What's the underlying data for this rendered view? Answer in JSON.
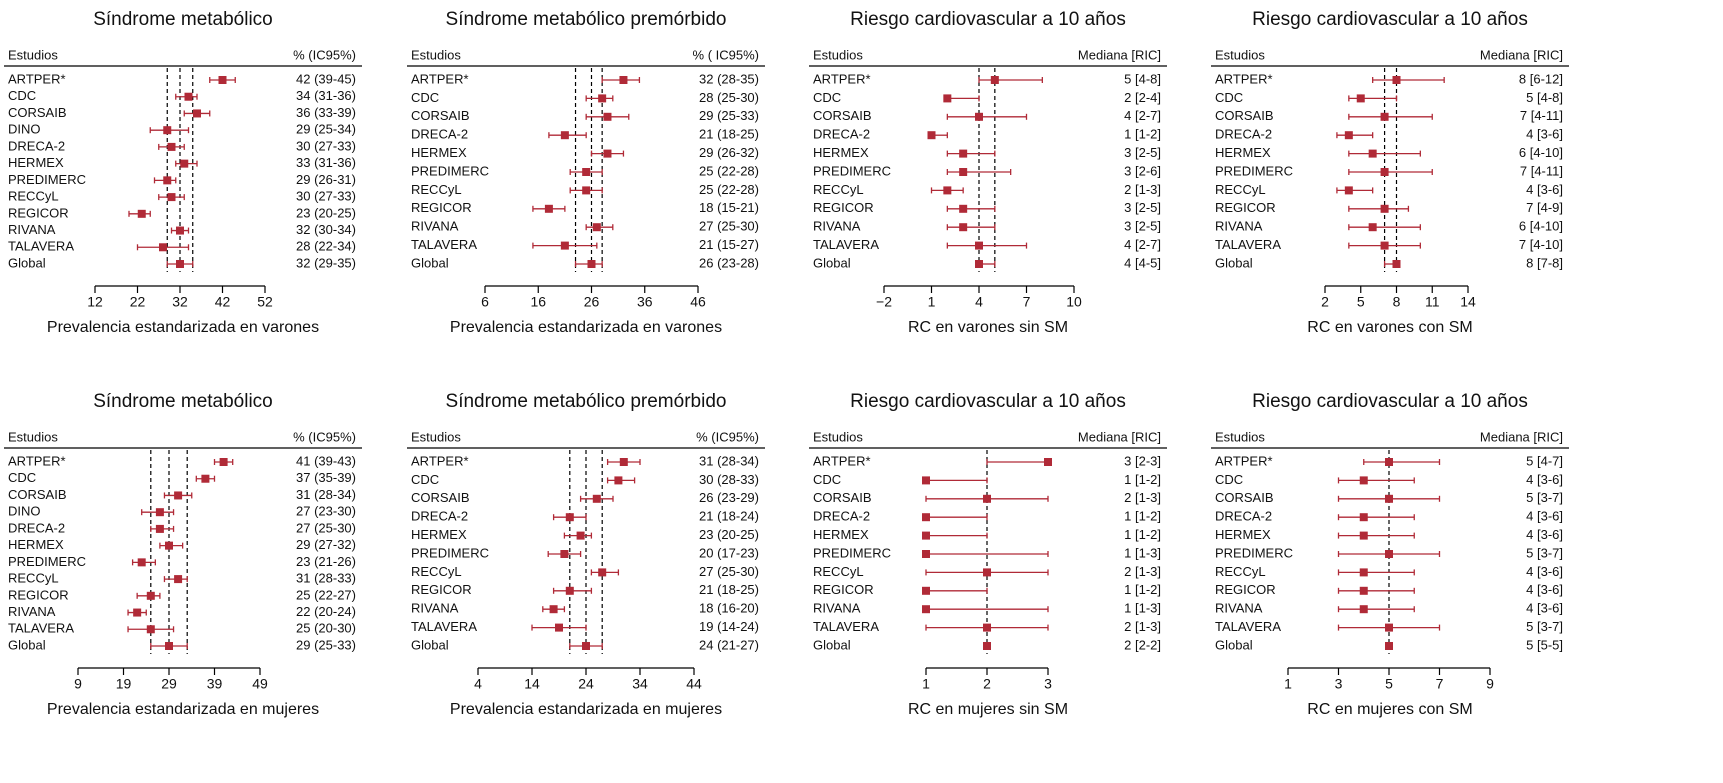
{
  "chart_data": [
    {
      "type": "forest",
      "title": "Síndrome metabólico",
      "header_left": "Estudios",
      "header_right": "% (IC95%)",
      "xlabel": "Prevalencia estandarizada en varones",
      "color": "#b02a37",
      "categories": [
        "ARTPER*",
        "CDC",
        "CORSAIB",
        "DINO",
        "DRECA-2",
        "HERMEX",
        "PREDIMERC",
        "RECCyL",
        "REGICOR",
        "RIVANA",
        "TALAVERA",
        "Global"
      ],
      "values": [
        42,
        34,
        36,
        29,
        30,
        33,
        29,
        30,
        23,
        32,
        28,
        32
      ],
      "lower": [
        39,
        31,
        33,
        25,
        27,
        31,
        26,
        27,
        20,
        30,
        22,
        29
      ],
      "upper": [
        45,
        36,
        39,
        34,
        33,
        36,
        31,
        33,
        25,
        34,
        34,
        35
      ],
      "value_labels": [
        "42 (39-45)",
        "34 (31-36)",
        "36 (33-39)",
        "29 (25-34)",
        "30 (27-33)",
        "33 (31-36)",
        "29 (26-31)",
        "30 (27-33)",
        "23 (20-25)",
        "32 (30-34)",
        "28 (22-34)",
        "32 (29-35)"
      ],
      "reference_lines": [
        29,
        32,
        35
      ],
      "xlim": [
        12,
        52
      ],
      "xticks": [
        12,
        22,
        32,
        42,
        52
      ]
    },
    {
      "type": "forest",
      "title": "Síndrome metabólico premórbido",
      "header_left": "Estudios",
      "header_right": "% ( IC95%)",
      "xlabel": "Prevalencia estandarizada en varones",
      "color": "#b02a37",
      "categories": [
        "ARTPER*",
        "CDC",
        "CORSAIB",
        "DRECA-2",
        "HERMEX",
        "PREDIMERC",
        "RECCyL",
        "REGICOR",
        "RIVANA",
        "TALAVERA",
        "Global"
      ],
      "values": [
        32,
        28,
        29,
        21,
        29,
        25,
        25,
        18,
        27,
        21,
        26
      ],
      "lower": [
        28,
        25,
        25,
        18,
        26,
        22,
        22,
        15,
        25,
        15,
        23
      ],
      "upper": [
        35,
        30,
        33,
        25,
        32,
        28,
        28,
        21,
        30,
        27,
        28
      ],
      "value_labels": [
        "32 (28-35)",
        "28 (25-30)",
        "29 (25-33)",
        "21 (18-25)",
        "29 (26-32)",
        "25 (22-28)",
        "25 (22-28)",
        "18 (15-21)",
        "27 (25-30)",
        "21 (15-27)",
        "26 (23-28)"
      ],
      "reference_lines": [
        23,
        26,
        28
      ],
      "xlim": [
        6,
        46
      ],
      "xticks": [
        6,
        16,
        26,
        36,
        46
      ]
    },
    {
      "type": "forest",
      "title": "Riesgo cardiovascular a 10 años",
      "header_left": "Estudios",
      "header_right": "Mediana [RIC]",
      "xlabel": "RC en varones sin SM",
      "color": "#b02a37",
      "categories": [
        "ARTPER*",
        "CDC",
        "CORSAIB",
        "DRECA-2",
        "HERMEX",
        "PREDIMERC",
        "RECCyL",
        "REGICOR",
        "RIVANA",
        "TALAVERA",
        "Global"
      ],
      "values": [
        5,
        2,
        4,
        1,
        3,
        3,
        2,
        3,
        3,
        4,
        4
      ],
      "lower": [
        4,
        2,
        2,
        1,
        2,
        2,
        1,
        2,
        2,
        2,
        4
      ],
      "upper": [
        8,
        4,
        7,
        2,
        5,
        6,
        3,
        5,
        5,
        7,
        5
      ],
      "value_labels": [
        "5 [4-8]",
        "2 [2-4]",
        "4 [2-7]",
        "1 [1-2]",
        "3 [2-5]",
        "3 [2-6]",
        "2 [1-3]",
        "3 [2-5]",
        "3 [2-5]",
        "4 [2-7]",
        "4 [4-5]"
      ],
      "reference_lines": [
        4,
        5
      ],
      "xlim": [
        -2,
        10
      ],
      "xticks": [
        {
          "value": -2,
          "label": "−2"
        },
        1,
        4,
        7,
        10
      ]
    },
    {
      "type": "forest",
      "title": "Riesgo cardiovascular a 10 años",
      "header_left": "Estudios",
      "header_right": "Mediana [RIC]",
      "xlabel": "RC en varones con SM",
      "color": "#b02a37",
      "categories": [
        "ARTPER*",
        "CDC",
        "CORSAIB",
        "DRECA-2",
        "HERMEX",
        "PREDIMERC",
        "RECCyL",
        "REGICOR",
        "RIVANA",
        "TALAVERA",
        "Global"
      ],
      "values": [
        8,
        5,
        7,
        4,
        6,
        7,
        4,
        7,
        6,
        7,
        8
      ],
      "lower": [
        6,
        4,
        4,
        3,
        4,
        4,
        3,
        4,
        4,
        4,
        7
      ],
      "upper": [
        12,
        8,
        11,
        6,
        10,
        11,
        6,
        9,
        10,
        10,
        8
      ],
      "value_labels": [
        "8 [6-12]",
        "5 [4-8]",
        "7 [4-11]",
        "4 [3-6]",
        "6 [4-10]",
        "7 [4-11]",
        "4 [3-6]",
        "7 [4-9]",
        "6 [4-10]",
        "7 [4-10]",
        "8 [7-8]"
      ],
      "reference_lines": [
        7,
        8
      ],
      "xlim": [
        2,
        14
      ],
      "xticks": [
        2,
        5,
        8,
        11,
        14
      ]
    },
    {
      "type": "forest",
      "title": "Síndrome metabólico",
      "header_left": "Estudios",
      "header_right": "% (IC95%)",
      "xlabel": "Prevalencia estandarizada en mujeres",
      "color": "#b02a37",
      "categories": [
        "ARTPER*",
        "CDC",
        "CORSAIB",
        "DINO",
        "DRECA-2",
        "HERMEX",
        "PREDIMERC",
        "RECCyL",
        "REGICOR",
        "RIVANA",
        "TALAVERA",
        "Global"
      ],
      "values": [
        41,
        37,
        31,
        27,
        27,
        29,
        23,
        31,
        25,
        22,
        25,
        29
      ],
      "lower": [
        39,
        35,
        28,
        23,
        25,
        27,
        21,
        28,
        22,
        20,
        20,
        25
      ],
      "upper": [
        43,
        39,
        34,
        30,
        30,
        32,
        26,
        33,
        27,
        24,
        30,
        33
      ],
      "value_labels": [
        "41 (39-43)",
        "37 (35-39)",
        "31 (28-34)",
        "27 (23-30)",
        "27 (25-30)",
        "29 (27-32)",
        "23 (21-26)",
        "31 (28-33)",
        "25 (22-27)",
        "22 (20-24)",
        "25 (20-30)",
        "29 (25-33)"
      ],
      "reference_lines": [
        25,
        29,
        33
      ],
      "xlim": [
        9,
        49
      ],
      "xticks": [
        9,
        19,
        29,
        39,
        49
      ]
    },
    {
      "type": "forest",
      "title": "Síndrome metabólico premórbido",
      "header_left": "Estudios",
      "header_right": "% (IC95%)",
      "xlabel": "Prevalencia estandarizada en mujeres",
      "color": "#b02a37",
      "categories": [
        "ARTPER*",
        "CDC",
        "CORSAIB",
        "DRECA-2",
        "HERMEX",
        "PREDIMERC",
        "RECCyL",
        "REGICOR",
        "RIVANA",
        "TALAVERA",
        "Global"
      ],
      "values": [
        31,
        30,
        26,
        21,
        23,
        20,
        27,
        21,
        18,
        19,
        24
      ],
      "lower": [
        28,
        28,
        23,
        18,
        20,
        17,
        25,
        18,
        16,
        14,
        21
      ],
      "upper": [
        34,
        33,
        29,
        24,
        25,
        23,
        30,
        25,
        20,
        24,
        27
      ],
      "value_labels": [
        "31 (28-34)",
        "30 (28-33)",
        "26 (23-29)",
        "21 (18-24)",
        "23 (20-25)",
        "20 (17-23)",
        "27 (25-30)",
        "21 (18-25)",
        "18 (16-20)",
        "19 (14-24)",
        "24 (21-27)"
      ],
      "reference_lines": [
        21,
        24,
        27
      ],
      "xlim": [
        4,
        44
      ],
      "xticks": [
        4,
        14,
        24,
        34,
        44
      ]
    },
    {
      "type": "forest",
      "title": "Riesgo cardiovascular a 10 años",
      "header_left": "Estudios",
      "header_right": "Mediana [RIC]",
      "xlabel": "RC en mujeres sin SM",
      "color": "#b02a37",
      "categories": [
        "ARTPER*",
        "CDC",
        "CORSAIB",
        "DRECA-2",
        "HERMEX",
        "PREDIMERC",
        "RECCyL",
        "REGICOR",
        "RIVANA",
        "TALAVERA",
        "Global"
      ],
      "values": [
        3,
        1,
        2,
        1,
        1,
        1,
        2,
        1,
        1,
        2,
        2
      ],
      "lower": [
        2,
        1,
        1,
        1,
        1,
        1,
        1,
        1,
        1,
        1,
        2
      ],
      "upper": [
        3,
        2,
        3,
        2,
        2,
        3,
        3,
        2,
        3,
        3,
        2
      ],
      "value_labels": [
        "3 [2-3]",
        "1 [1-2]",
        "2 [1-3]",
        "1 [1-2]",
        "1 [1-2]",
        "1 [1-3]",
        "2 [1-3]",
        "1 [1-2]",
        "1 [1-3]",
        "2 [1-3]",
        "2 [2-2]"
      ],
      "reference_lines": [
        2
      ],
      "xlim": [
        1,
        3
      ],
      "xticks": [
        1,
        2,
        3
      ]
    },
    {
      "type": "forest",
      "title": "Riesgo cardiovascular a 10 años",
      "header_left": "Estudios",
      "header_right": "Mediana [RIC]",
      "xlabel": "RC en mujeres con SM",
      "color": "#b02a37",
      "categories": [
        "ARTPER*",
        "CDC",
        "CORSAIB",
        "DRECA-2",
        "HERMEX",
        "PREDIMERC",
        "RECCyL",
        "REGICOR",
        "RIVANA",
        "TALAVERA",
        "Global"
      ],
      "values": [
        5,
        4,
        5,
        4,
        4,
        5,
        4,
        4,
        4,
        5,
        5
      ],
      "lower": [
        4,
        3,
        3,
        3,
        3,
        3,
        3,
        3,
        3,
        3,
        5
      ],
      "upper": [
        7,
        6,
        7,
        6,
        6,
        7,
        6,
        6,
        6,
        7,
        5
      ],
      "value_labels": [
        "5 [4-7]",
        "4 [3-6]",
        "5 [3-7]",
        "4 [3-6]",
        "4 [3-6]",
        "5 [3-7]",
        "4 [3-6]",
        "4 [3-6]",
        "4 [3-6]",
        "5 [3-7]",
        "5 [5-5]"
      ],
      "reference_lines": [
        5
      ],
      "xlim": [
        1,
        9
      ],
      "xticks": [
        1,
        3,
        5,
        7,
        9
      ]
    }
  ]
}
